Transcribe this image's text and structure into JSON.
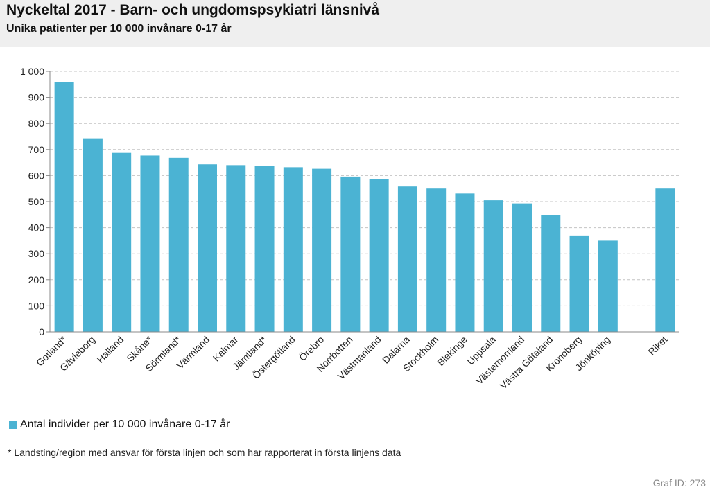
{
  "header": {
    "title": "Nyckeltal 2017 - Barn- och ungdomspsykiatri länsnivå",
    "subtitle": "Unika patienter per 10 000 invånare 0-17 år"
  },
  "chart_data": {
    "type": "bar",
    "title": "Nyckeltal 2017 - Barn- och ungdomspsykiatri länsnivå",
    "subtitle": "Unika patienter per 10 000 invånare 0-17 år",
    "categories": [
      "Gotland*",
      "Gävleborg",
      "Halland",
      "Skåne*",
      "Sörmland*",
      "Värmland",
      "Kalmar",
      "Jämtland*",
      "Östergötland",
      "Örebro",
      "Norrbotten",
      "Västmanland",
      "Dalarna",
      "Stockholm",
      "Blekinge",
      "Uppsala",
      "Västernorrland",
      "Västra Götaland",
      "Kronoberg",
      "Jönköping",
      "",
      "Riket"
    ],
    "series": [
      {
        "name": "Antal individer per 10 000 invånare 0-17 år",
        "values": [
          960,
          743,
          687,
          677,
          668,
          643,
          640,
          636,
          632,
          626,
          596,
          587,
          558,
          550,
          531,
          505,
          493,
          447,
          370,
          350,
          null,
          550
        ]
      }
    ],
    "ylim": [
      0,
      1000
    ],
    "yticks": [
      0,
      100,
      200,
      300,
      400,
      500,
      600,
      700,
      800,
      900,
      1000
    ],
    "ytick_labels": [
      "0",
      "100",
      "200",
      "300",
      "400",
      "500",
      "600",
      "700",
      "800",
      "900",
      "1 000"
    ],
    "xlabel": "",
    "ylabel": "",
    "grid": true,
    "legend_position": "bottom-left",
    "bar_color": "#4bb3d3"
  },
  "legend": {
    "label": "Antal individer per 10 000 invånare 0-17 år"
  },
  "footnote": "* Landsting/region med ansvar för första linjen och som har rapporterat in första linjens data",
  "graph_id": "Graf ID: 273"
}
